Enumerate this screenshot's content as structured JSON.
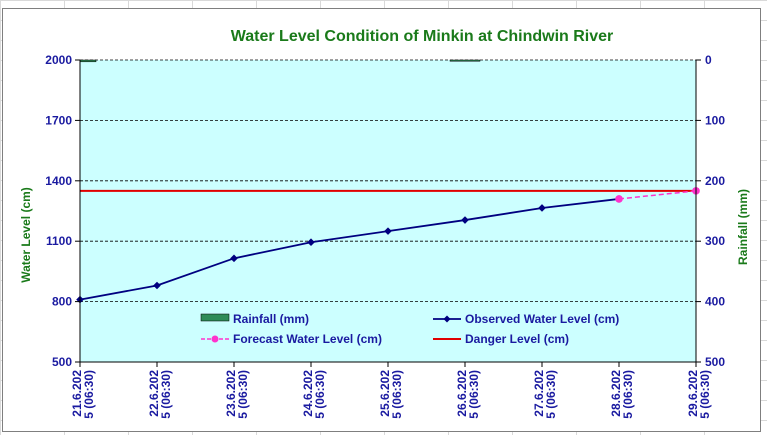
{
  "chart_data": {
    "type": "line",
    "title": "Water Level Condition of Minkin at Chindwin River",
    "ylabel_left": "Water Level (cm)",
    "ylabel_right": "Rainfall (mm)",
    "ylim_left": [
      500,
      2000
    ],
    "yticks_left": [
      "2000",
      "1700",
      "1400",
      "1100",
      "800",
      "500"
    ],
    "ylim_right": [
      500,
      0
    ],
    "yticks_right": [
      "0",
      "100",
      "200",
      "300",
      "400",
      "500"
    ],
    "categories": [
      "21.6.2025 (06:30)",
      "22.6.2025 (06:30)",
      "23.6.2025 (06:30)",
      "24.6.2025 (06:30)",
      "25.6.2025 (06:30)",
      "26.6.2025 (06:30)",
      "27.6.2025 (06:30)",
      "28.6.2025 (06:30)",
      "29.6.2025 (06:30)"
    ],
    "tick_lines": [
      [
        "21.6.202",
        "5 (06:30)"
      ],
      [
        "22.6.202",
        "5 (06:30)"
      ],
      [
        "23.6.202",
        "5 (06:30)"
      ],
      [
        "24.6.202",
        "5 (06:30)"
      ],
      [
        "25.6.202",
        "5 (06:30)"
      ],
      [
        "26.6.202",
        "5 (06:30)"
      ],
      [
        "27.6.202",
        "5 (06:30)"
      ],
      [
        "28.6.202",
        "5 (06:30)"
      ],
      [
        "29.6.202",
        "5 (06:30)"
      ]
    ],
    "series": [
      {
        "name": "Rainfall (mm)",
        "kind": "bar",
        "axis": "right",
        "color": "#2e8b57",
        "values": [
          3,
          0,
          0,
          0,
          0,
          2,
          0,
          0,
          null
        ]
      },
      {
        "name": "Observed Water Level (cm)",
        "kind": "line",
        "axis": "left",
        "color": "#000080",
        "values": [
          810,
          880,
          1015,
          1095,
          1150,
          1205,
          1265,
          1310,
          null
        ]
      },
      {
        "name": "Forecast Water Level (cm)",
        "kind": "dashed-line",
        "axis": "left",
        "color": "#ff33cc",
        "values": [
          null,
          null,
          null,
          null,
          null,
          null,
          null,
          1310,
          1350
        ]
      },
      {
        "name": "Danger Level (cm)",
        "kind": "hline",
        "axis": "left",
        "color": "#e00000",
        "value": 1350
      }
    ],
    "plot_background": "#ccffff",
    "gridlines": true,
    "legend_position": "inside-bottom"
  }
}
